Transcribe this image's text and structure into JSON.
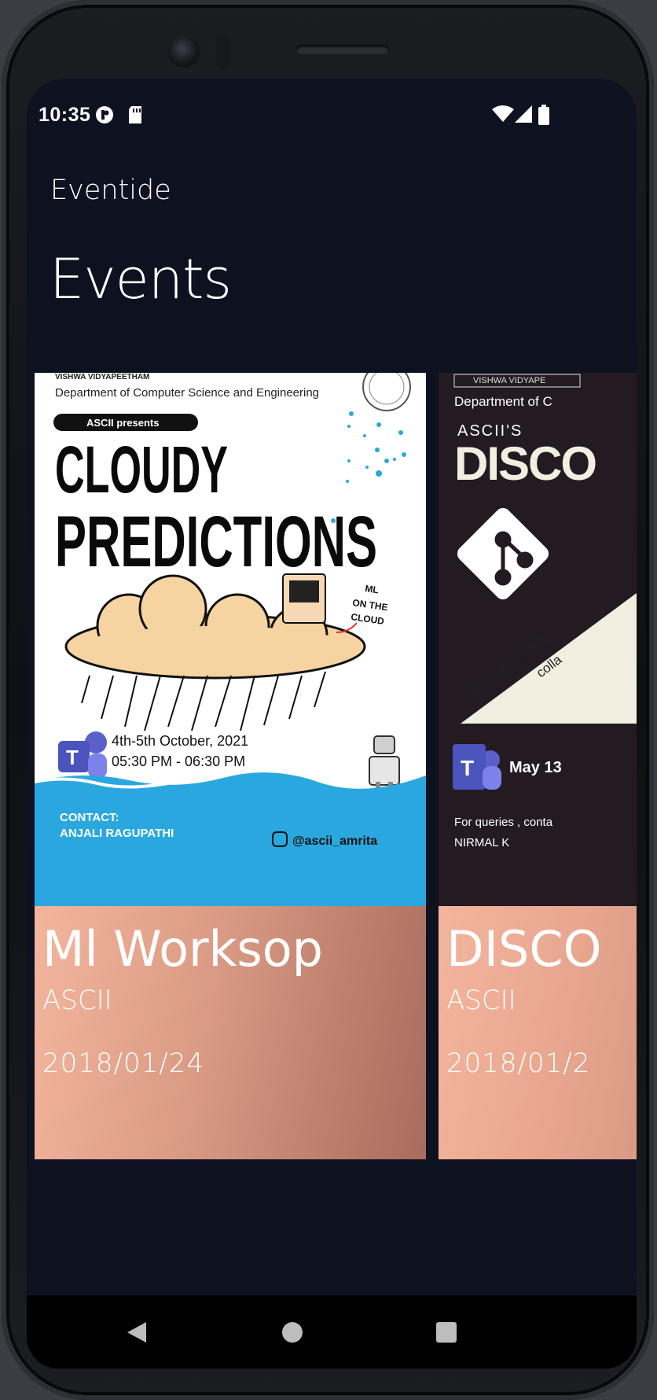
{
  "status": {
    "time": "10:35"
  },
  "app": {
    "title": "Eventide"
  },
  "page": {
    "title": "Events"
  },
  "events": [
    {
      "title": "Ml Worksop",
      "organizer": "ASCII",
      "date": "2018/01/24",
      "poster": {
        "university": "VISHWA VIDYAPEETHAM",
        "department": "Department of Computer Science and Engineering",
        "presents": "ASCII presents",
        "headline_1": "CLOUDY",
        "headline_2": "PREDICTIONS",
        "note_1": "ML",
        "note_2": "ON THE",
        "note_3": "CLOUD",
        "dates": "4th-5th October, 2021",
        "times": "05:30 PM - 06:30 PM",
        "contact_label": "CONTACT:",
        "contact_name": "ANJALI RAGUPATHI",
        "handle": "@ascii_amrita"
      }
    },
    {
      "title": "DISCO",
      "organizer": "ASCII",
      "date": "2018/01/2",
      "poster": {
        "university": "VISHWA VIDYAPE",
        "department": "Department of C",
        "presents": "ASCII'S",
        "headline": "DISCO",
        "tagline_1": "Learn everything",
        "tagline_2": "colla",
        "date": "May 13",
        "queries": "For queries , conta",
        "contact": "NIRMAL K"
      }
    }
  ],
  "colors": {
    "background": "#0d1120",
    "card_gradient_start": "#f2b09a",
    "card_gradient_end": "#b07060",
    "poster_sea": "#2aa7df",
    "disco_bg": "#231a22"
  }
}
